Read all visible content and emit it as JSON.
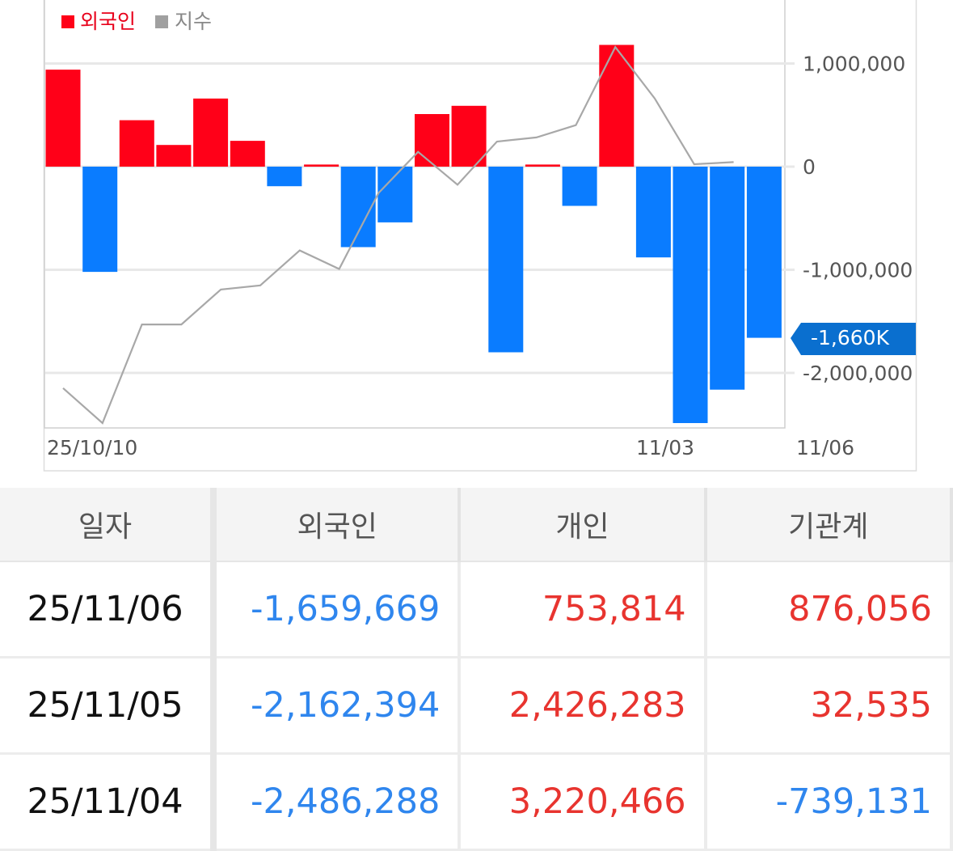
{
  "legend": [
    {
      "label": "외국인",
      "color": "#ff0018"
    },
    {
      "label": "지수",
      "color": "#a0a0a0"
    }
  ],
  "current_marker": {
    "label": "-1,660K",
    "color": "#0a6fcf"
  },
  "chart_data": {
    "type": "bar",
    "series": [
      {
        "name": "외국인",
        "type": "bar",
        "values": [
          940000,
          -1020000,
          450000,
          210000,
          660000,
          250000,
          -190000,
          20000,
          -780000,
          -540000,
          510000,
          590000,
          -1800000,
          20000,
          -380000,
          1180000,
          -880000,
          -2486288,
          -2162394,
          -1659669
        ]
      },
      {
        "name": "지수",
        "type": "line",
        "relative_values": [
          0.17,
          0.0,
          0.48,
          0.48,
          0.65,
          0.67,
          0.84,
          0.75,
          1.12,
          1.32,
          1.16,
          1.37,
          1.39,
          1.45,
          1.83,
          1.58,
          1.26,
          1.27
        ]
      }
    ],
    "y_axis": {
      "ticks": [
        "1,000,000",
        "0",
        "-1,000,000",
        "-2,000,000"
      ],
      "tick_values": [
        1000000,
        0,
        -1000000,
        -2000000
      ],
      "ylim": [
        -2550000,
        1600000
      ],
      "side": "right"
    },
    "x_axis": {
      "ticks": [
        "25/10/10",
        "11/03",
        "11/06"
      ]
    },
    "grid": true,
    "legend_placement": "top-left"
  },
  "table": {
    "headers": [
      "일자",
      "외국인",
      "개인",
      "기관계"
    ],
    "rows": [
      {
        "date": "25/11/06",
        "cells": [
          {
            "text": "-1,659,669",
            "sign": "neg"
          },
          {
            "text": "753,814",
            "sign": "pos"
          },
          {
            "text": "876,056",
            "sign": "pos"
          }
        ]
      },
      {
        "date": "25/11/05",
        "cells": [
          {
            "text": "-2,162,394",
            "sign": "neg"
          },
          {
            "text": "2,426,283",
            "sign": "pos"
          },
          {
            "text": "32,535",
            "sign": "pos"
          }
        ]
      },
      {
        "date": "25/11/04",
        "cells": [
          {
            "text": "-2,486,288",
            "sign": "neg"
          },
          {
            "text": "3,220,466",
            "sign": "pos"
          },
          {
            "text": "-739,131",
            "sign": "neg"
          }
        ]
      }
    ]
  },
  "colors": {
    "positive": "#e8342f",
    "negative": "#2f86ee",
    "bar_positive": "#ff0018",
    "bar_negative": "#0a7cff",
    "index_line": "#a8a8a8"
  }
}
